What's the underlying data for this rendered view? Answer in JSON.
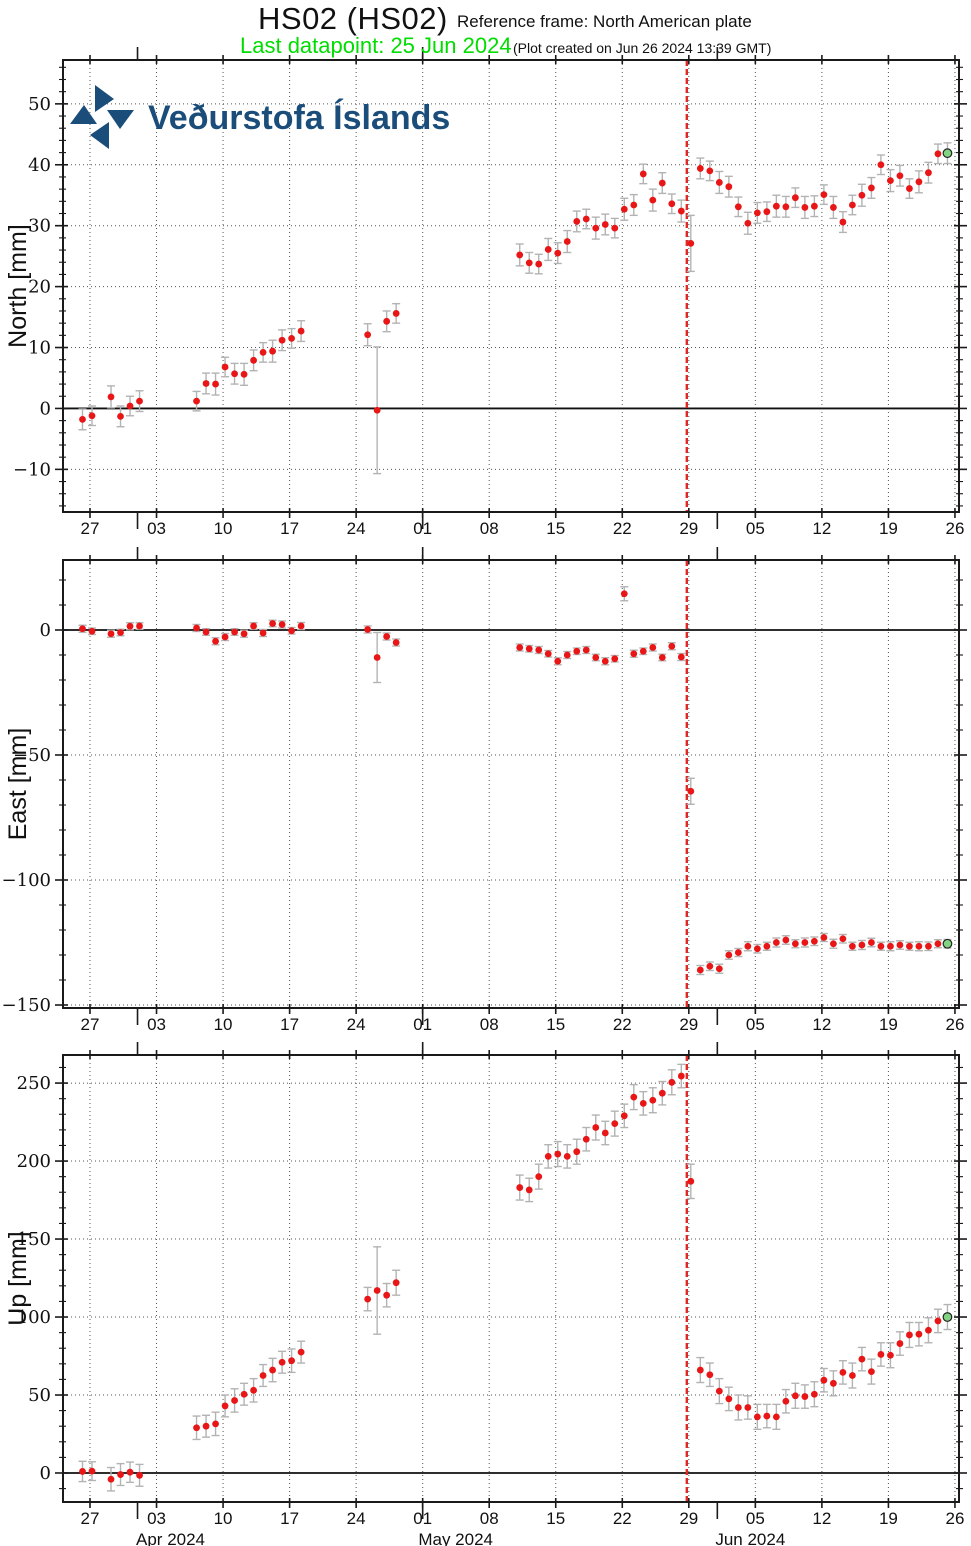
{
  "header": {
    "title": "HS02 (HS02)",
    "reference_frame": "Reference frame: North American plate",
    "last_datapoint": "Last datapoint: 25 Jun 2024",
    "plot_created": "(Plot created on Jun 26 2024 13:39 GMT)",
    "logo_text": "Veðurstofa Íslands"
  },
  "colors": {
    "point": "#e81616",
    "last_point_fill": "#82d382",
    "last_point_stroke": "#222222",
    "error_bar": "#b3b3b3",
    "event_line": "#e02828",
    "grid": "#555555",
    "frame": "#1a1a1a",
    "logo_blue": "#1b4d7a",
    "title_green": "#00dd00"
  },
  "xaxis": {
    "week_ticks": [
      {
        "date": "2024-03-27",
        "label": "27"
      },
      {
        "date": "2024-04-03",
        "label": "03"
      },
      {
        "date": "2024-04-10",
        "label": "10"
      },
      {
        "date": "2024-04-17",
        "label": "17"
      },
      {
        "date": "2024-04-24",
        "label": "24"
      },
      {
        "date": "2024-05-01",
        "label": "01"
      },
      {
        "date": "2024-05-08",
        "label": "08"
      },
      {
        "date": "2024-05-15",
        "label": "15"
      },
      {
        "date": "2024-05-22",
        "label": "22"
      },
      {
        "date": "2024-05-29",
        "label": "29"
      },
      {
        "date": "2024-06-05",
        "label": "05"
      },
      {
        "date": "2024-06-12",
        "label": "12"
      },
      {
        "date": "2024-06-19",
        "label": "19"
      },
      {
        "date": "2024-06-26",
        "label": "26"
      }
    ],
    "month_ticks": [
      "2024-04-01",
      "2024-05-01",
      "2024-06-01"
    ],
    "month_labels": [
      {
        "date": "2024-04-01",
        "label": "Apr 2024"
      },
      {
        "date": "2024-05-01",
        "label": "May 2024"
      },
      {
        "date": "2024-06-01",
        "label": "Jun 2024"
      }
    ],
    "event_date": "2024-05-29"
  },
  "chart_data": [
    {
      "type": "scatter",
      "name": "north",
      "title": "",
      "xlabel": "",
      "ylabel": "North [mm]",
      "ylim": [
        -17.0,
        57.2
      ],
      "yticks": [
        -10,
        0,
        10,
        20,
        30,
        40,
        50
      ],
      "yminor_step": 2,
      "grid": true,
      "last_point_green": true,
      "points": [
        [
          "2024-03-26",
          -1.8,
          1.7
        ],
        [
          "2024-03-27",
          -1.2,
          1.6
        ],
        [
          "2024-03-29",
          1.9,
          1.8
        ],
        [
          "2024-03-30",
          -1.3,
          1.7
        ],
        [
          "2024-03-31",
          0.4,
          1.6
        ],
        [
          "2024-04-01",
          1.2,
          1.7
        ],
        [
          "2024-04-07",
          1.2,
          1.6
        ],
        [
          "2024-04-08",
          4.1,
          1.7
        ],
        [
          "2024-04-09",
          4.0,
          1.8
        ],
        [
          "2024-04-10",
          6.8,
          1.6
        ],
        [
          "2024-04-11",
          5.7,
          1.7
        ],
        [
          "2024-04-12",
          5.6,
          1.8
        ],
        [
          "2024-04-13",
          7.9,
          1.7
        ],
        [
          "2024-04-14",
          9.2,
          1.6
        ],
        [
          "2024-04-15",
          9.4,
          1.8
        ],
        [
          "2024-04-16",
          11.2,
          1.7
        ],
        [
          "2024-04-17",
          11.5,
          1.6
        ],
        [
          "2024-04-18",
          12.7,
          1.7
        ],
        [
          "2024-04-25",
          12.1,
          1.8
        ],
        [
          "2024-04-26",
          -0.3,
          10.4
        ],
        [
          "2024-04-27",
          14.3,
          1.7
        ],
        [
          "2024-04-28",
          15.6,
          1.6
        ],
        [
          "2024-05-11",
          25.2,
          1.8
        ],
        [
          "2024-05-12",
          23.9,
          1.7
        ],
        [
          "2024-05-13",
          23.7,
          1.6
        ],
        [
          "2024-05-14",
          26.1,
          1.8
        ],
        [
          "2024-05-15",
          25.5,
          1.7
        ],
        [
          "2024-05-16",
          27.4,
          1.8
        ],
        [
          "2024-05-17",
          30.7,
          1.7
        ],
        [
          "2024-05-18",
          31.1,
          1.6
        ],
        [
          "2024-05-19",
          29.6,
          1.8
        ],
        [
          "2024-05-20",
          30.2,
          1.7
        ],
        [
          "2024-05-21",
          29.6,
          1.6
        ],
        [
          "2024-05-22",
          32.7,
          1.8
        ],
        [
          "2024-05-23",
          33.4,
          1.7
        ],
        [
          "2024-05-24",
          38.5,
          1.6
        ],
        [
          "2024-05-25",
          34.2,
          1.8
        ],
        [
          "2024-05-26",
          37.0,
          1.7
        ],
        [
          "2024-05-27",
          33.6,
          1.6
        ],
        [
          "2024-05-28",
          32.4,
          1.8
        ],
        [
          "2024-05-29",
          27.1,
          4.6
        ],
        [
          "2024-05-30",
          39.4,
          1.7
        ],
        [
          "2024-05-31",
          39.0,
          1.6
        ],
        [
          "2024-06-01",
          37.1,
          1.8
        ],
        [
          "2024-06-02",
          36.4,
          1.7
        ],
        [
          "2024-06-03",
          33.1,
          1.6
        ],
        [
          "2024-06-04",
          30.4,
          1.8
        ],
        [
          "2024-06-05",
          32.1,
          1.7
        ],
        [
          "2024-06-06",
          32.3,
          1.6
        ],
        [
          "2024-06-07",
          33.2,
          1.8
        ],
        [
          "2024-06-08",
          33.1,
          1.7
        ],
        [
          "2024-06-09",
          34.6,
          1.6
        ],
        [
          "2024-06-10",
          33.0,
          1.8
        ],
        [
          "2024-06-11",
          33.2,
          1.7
        ],
        [
          "2024-06-12",
          35.1,
          1.6
        ],
        [
          "2024-06-13",
          33.0,
          1.8
        ],
        [
          "2024-06-14",
          30.6,
          1.7
        ],
        [
          "2024-06-15",
          33.4,
          1.6
        ],
        [
          "2024-06-16",
          35.0,
          1.8
        ],
        [
          "2024-06-17",
          36.2,
          1.7
        ],
        [
          "2024-06-18",
          40.0,
          1.6
        ],
        [
          "2024-06-19",
          37.4,
          1.8
        ],
        [
          "2024-06-20",
          38.2,
          1.7
        ],
        [
          "2024-06-21",
          36.1,
          1.6
        ],
        [
          "2024-06-22",
          37.2,
          1.8
        ],
        [
          "2024-06-23",
          38.7,
          1.7
        ],
        [
          "2024-06-24",
          41.8,
          1.6
        ],
        [
          "2024-06-25",
          41.9,
          1.7
        ]
      ]
    },
    {
      "type": "scatter",
      "name": "east",
      "title": "",
      "xlabel": "",
      "ylabel": "East [mm]",
      "ylim": [
        -151.2,
        28.0
      ],
      "yticks": [
        0,
        -50,
        -100,
        -150
      ],
      "yminor_step": 10,
      "grid": true,
      "last_point_green": true,
      "points": [
        [
          "2024-03-26",
          0.5,
          1.4
        ],
        [
          "2024-03-27",
          -0.5,
          1.3
        ],
        [
          "2024-03-29",
          -1.5,
          1.4
        ],
        [
          "2024-03-30",
          -1.0,
          1.3
        ],
        [
          "2024-03-31",
          1.5,
          1.4
        ],
        [
          "2024-04-01",
          1.6,
          1.3
        ],
        [
          "2024-04-07",
          0.8,
          1.4
        ],
        [
          "2024-04-08",
          -0.8,
          1.3
        ],
        [
          "2024-04-09",
          -4.5,
          1.4
        ],
        [
          "2024-04-10",
          -2.8,
          1.4
        ],
        [
          "2024-04-11",
          -0.8,
          1.3
        ],
        [
          "2024-04-12",
          -1.5,
          1.4
        ],
        [
          "2024-04-13",
          1.6,
          1.3
        ],
        [
          "2024-04-14",
          -1.2,
          1.4
        ],
        [
          "2024-04-15",
          2.6,
          1.3
        ],
        [
          "2024-04-16",
          2.2,
          1.4
        ],
        [
          "2024-04-17",
          -0.3,
          1.3
        ],
        [
          "2024-04-18",
          1.6,
          1.4
        ],
        [
          "2024-04-25",
          0.2,
          1.4
        ],
        [
          "2024-04-26",
          -11.0,
          10.0
        ],
        [
          "2024-04-27",
          -2.6,
          1.4
        ],
        [
          "2024-04-28",
          -5.0,
          1.4
        ],
        [
          "2024-05-11",
          -7.0,
          1.4
        ],
        [
          "2024-05-12",
          -7.5,
          1.3
        ],
        [
          "2024-05-13",
          -8.0,
          1.4
        ],
        [
          "2024-05-14",
          -9.5,
          1.3
        ],
        [
          "2024-05-15",
          -12.5,
          1.4
        ],
        [
          "2024-05-16",
          -10.0,
          1.4
        ],
        [
          "2024-05-17",
          -8.5,
          1.3
        ],
        [
          "2024-05-18",
          -8.0,
          1.4
        ],
        [
          "2024-05-19",
          -11.0,
          1.3
        ],
        [
          "2024-05-20",
          -12.5,
          1.4
        ],
        [
          "2024-05-21",
          -11.5,
          1.3
        ],
        [
          "2024-05-22",
          14.5,
          2.8
        ],
        [
          "2024-05-23",
          -9.5,
          1.4
        ],
        [
          "2024-05-24",
          -8.5,
          1.3
        ],
        [
          "2024-05-25",
          -7.0,
          1.4
        ],
        [
          "2024-05-26",
          -11.0,
          1.3
        ],
        [
          "2024-05-27",
          -6.5,
          1.4
        ],
        [
          "2024-05-28",
          -10.8,
          1.4
        ],
        [
          "2024-05-29",
          -64.5,
          5.2
        ],
        [
          "2024-05-30",
          -136.0,
          1.8
        ],
        [
          "2024-05-31",
          -134.5,
          1.7
        ],
        [
          "2024-06-01",
          -135.5,
          1.8
        ],
        [
          "2024-06-02",
          -130.0,
          1.7
        ],
        [
          "2024-06-03",
          -129.0,
          1.6
        ],
        [
          "2024-06-04",
          -126.5,
          1.8
        ],
        [
          "2024-06-05",
          -127.5,
          1.7
        ],
        [
          "2024-06-06",
          -126.5,
          1.6
        ],
        [
          "2024-06-07",
          -125.0,
          1.8
        ],
        [
          "2024-06-08",
          -124.0,
          1.7
        ],
        [
          "2024-06-09",
          -125.5,
          1.6
        ],
        [
          "2024-06-10",
          -125.0,
          1.8
        ],
        [
          "2024-06-11",
          -124.5,
          1.7
        ],
        [
          "2024-06-12",
          -123.0,
          1.6
        ],
        [
          "2024-06-13",
          -125.5,
          1.8
        ],
        [
          "2024-06-14",
          -123.5,
          1.7
        ],
        [
          "2024-06-15",
          -126.5,
          1.6
        ],
        [
          "2024-06-16",
          -126.0,
          1.8
        ],
        [
          "2024-06-17",
          -125.0,
          1.7
        ],
        [
          "2024-06-18",
          -126.5,
          1.6
        ],
        [
          "2024-06-19",
          -126.5,
          1.8
        ],
        [
          "2024-06-20",
          -126.0,
          1.7
        ],
        [
          "2024-06-21",
          -126.5,
          1.6
        ],
        [
          "2024-06-22",
          -126.5,
          1.8
        ],
        [
          "2024-06-23",
          -126.5,
          1.7
        ],
        [
          "2024-06-24",
          -125.5,
          1.6
        ],
        [
          "2024-06-25",
          -125.5,
          1.7
        ]
      ]
    },
    {
      "type": "scatter",
      "name": "up",
      "title": "",
      "xlabel": "",
      "ylabel": "Up [mm]",
      "ylim": [
        -18.6,
        268.0
      ],
      "yticks": [
        0,
        50,
        100,
        150,
        200,
        250
      ],
      "yminor_step": 10,
      "grid": true,
      "last_point_green": true,
      "points": [
        [
          "2024-03-26",
          1.0,
          6.5
        ],
        [
          "2024-03-27",
          1.2,
          6.0
        ],
        [
          "2024-03-29",
          -4.0,
          7.5
        ],
        [
          "2024-03-30",
          -1.0,
          7.0
        ],
        [
          "2024-03-31",
          0.5,
          6.5
        ],
        [
          "2024-04-01",
          -1.5,
          7.0
        ],
        [
          "2024-04-07",
          29.0,
          7.5
        ],
        [
          "2024-04-08",
          30.0,
          7.0
        ],
        [
          "2024-04-09",
          31.5,
          7.5
        ],
        [
          "2024-04-10",
          43.0,
          7.0
        ],
        [
          "2024-04-11",
          46.5,
          7.5
        ],
        [
          "2024-04-12",
          50.5,
          7.0
        ],
        [
          "2024-04-13",
          53.0,
          7.5
        ],
        [
          "2024-04-14",
          62.5,
          7.0
        ],
        [
          "2024-04-15",
          66.0,
          7.5
        ],
        [
          "2024-04-16",
          71.0,
          7.0
        ],
        [
          "2024-04-17",
          72.0,
          7.5
        ],
        [
          "2024-04-18",
          77.5,
          7.0
        ],
        [
          "2024-04-25",
          111.5,
          7.5
        ],
        [
          "2024-04-26",
          117.0,
          28.0
        ],
        [
          "2024-04-27",
          114.0,
          7.5
        ],
        [
          "2024-04-28",
          122.0,
          8.0
        ],
        [
          "2024-05-11",
          183.0,
          8.0
        ],
        [
          "2024-05-12",
          181.5,
          7.5
        ],
        [
          "2024-05-13",
          190.0,
          8.0
        ],
        [
          "2024-05-14",
          203.0,
          7.5
        ],
        [
          "2024-05-15",
          204.5,
          8.0
        ],
        [
          "2024-05-16",
          203.0,
          7.5
        ],
        [
          "2024-05-17",
          206.0,
          8.0
        ],
        [
          "2024-05-18",
          214.0,
          7.5
        ],
        [
          "2024-05-19",
          221.5,
          8.0
        ],
        [
          "2024-05-20",
          218.0,
          7.5
        ],
        [
          "2024-05-21",
          224.0,
          8.0
        ],
        [
          "2024-05-22",
          229.0,
          7.5
        ],
        [
          "2024-05-23",
          241.0,
          8.0
        ],
        [
          "2024-05-24",
          237.0,
          7.5
        ],
        [
          "2024-05-25",
          239.0,
          8.0
        ],
        [
          "2024-05-26",
          243.5,
          7.5
        ],
        [
          "2024-05-27",
          250.5,
          8.0
        ],
        [
          "2024-05-28",
          254.5,
          7.5
        ],
        [
          "2024-05-29",
          187.0,
          11.0
        ],
        [
          "2024-05-30",
          66.0,
          8.0
        ],
        [
          "2024-05-31",
          63.0,
          7.5
        ],
        [
          "2024-06-01",
          52.5,
          8.0
        ],
        [
          "2024-06-02",
          47.5,
          7.5
        ],
        [
          "2024-06-03",
          42.0,
          8.0
        ],
        [
          "2024-06-04",
          42.0,
          7.5
        ],
        [
          "2024-06-05",
          36.0,
          8.0
        ],
        [
          "2024-06-06",
          36.5,
          7.5
        ],
        [
          "2024-06-07",
          36.0,
          8.0
        ],
        [
          "2024-06-08",
          46.0,
          7.5
        ],
        [
          "2024-06-09",
          49.5,
          8.0
        ],
        [
          "2024-06-10",
          49.0,
          7.5
        ],
        [
          "2024-06-11",
          50.5,
          8.0
        ],
        [
          "2024-06-12",
          59.5,
          7.5
        ],
        [
          "2024-06-13",
          57.5,
          8.0
        ],
        [
          "2024-06-14",
          64.5,
          7.5
        ],
        [
          "2024-06-15",
          62.5,
          8.0
        ],
        [
          "2024-06-16",
          73.0,
          7.5
        ],
        [
          "2024-06-17",
          65.0,
          8.0
        ],
        [
          "2024-06-18",
          76.0,
          7.5
        ],
        [
          "2024-06-19",
          75.5,
          8.0
        ],
        [
          "2024-06-20",
          83.0,
          7.5
        ],
        [
          "2024-06-21",
          88.5,
          8.0
        ],
        [
          "2024-06-22",
          89.0,
          7.5
        ],
        [
          "2024-06-23",
          91.5,
          8.0
        ],
        [
          "2024-06-24",
          97.5,
          7.5
        ],
        [
          "2024-06-25",
          100.0,
          8.0
        ]
      ]
    }
  ]
}
